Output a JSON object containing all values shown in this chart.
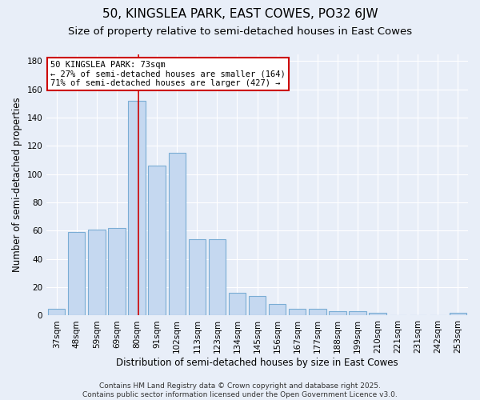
{
  "title": "50, KINGSLEA PARK, EAST COWES, PO32 6JW",
  "subtitle": "Size of property relative to semi-detached houses in East Cowes",
  "xlabel": "Distribution of semi-detached houses by size in East Cowes",
  "ylabel": "Number of semi-detached properties",
  "categories": [
    "37sqm",
    "48sqm",
    "59sqm",
    "69sqm",
    "80sqm",
    "91sqm",
    "102sqm",
    "113sqm",
    "123sqm",
    "134sqm",
    "145sqm",
    "156sqm",
    "167sqm",
    "177sqm",
    "188sqm",
    "199sqm",
    "210sqm",
    "221sqm",
    "231sqm",
    "242sqm",
    "253sqm"
  ],
  "values": [
    5,
    59,
    61,
    62,
    152,
    106,
    115,
    54,
    54,
    16,
    14,
    8,
    5,
    5,
    3,
    3,
    2,
    0,
    0,
    0,
    2
  ],
  "bar_color": "#c5d8f0",
  "bar_edge_color": "#7aadd4",
  "bar_linewidth": 0.8,
  "redline_x": 4.08,
  "annotation_text": "50 KINGSLEA PARK: 73sqm\n← 27% of semi-detached houses are smaller (164)\n71% of semi-detached houses are larger (427) →",
  "annotation_box_color": "white",
  "annotation_box_edge_color": "#cc0000",
  "redline_color": "#cc0000",
  "redline_linewidth": 1.2,
  "ylim": [
    0,
    185
  ],
  "yticks": [
    0,
    20,
    40,
    60,
    80,
    100,
    120,
    140,
    160,
    180
  ],
  "bg_color": "#e8eef8",
  "grid_color": "#ffffff",
  "footer_text": "Contains HM Land Registry data © Crown copyright and database right 2025.\nContains public sector information licensed under the Open Government Licence v3.0.",
  "title_fontsize": 11,
  "subtitle_fontsize": 9.5,
  "xlabel_fontsize": 8.5,
  "ylabel_fontsize": 8.5,
  "tick_fontsize": 7.5,
  "annotation_fontsize": 7.5,
  "footer_fontsize": 6.5
}
